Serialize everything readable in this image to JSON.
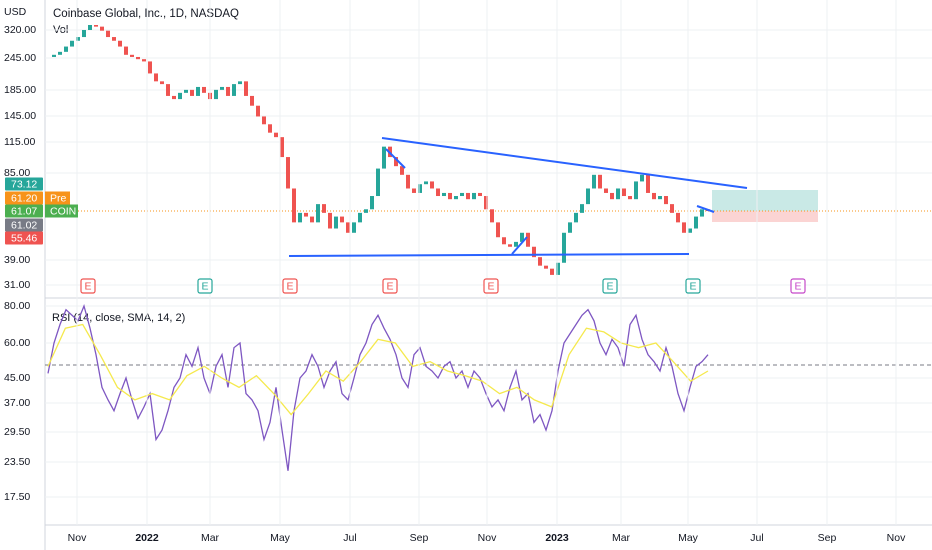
{
  "header": {
    "currency": "USD",
    "title": "Coinbase Global, Inc., 1D, NASDAQ",
    "volume": "Vol"
  },
  "price_axis": [
    "320.00",
    "245.00",
    "185.00",
    "145.00",
    "115.00",
    "85.00",
    "39.00",
    "31.00"
  ],
  "badges": [
    {
      "label": "73.12",
      "color": "#26a69a"
    },
    {
      "label": "61.20",
      "color": "#f7931a"
    },
    {
      "label": "61.07",
      "color": "#4caf50"
    },
    {
      "label": "61.02",
      "color": "#787b86"
    },
    {
      "label": "55.46",
      "color": "#ef5350"
    }
  ],
  "tags": {
    "pre": "Pre",
    "symbol": "COIN"
  },
  "price": {
    "closes": [
      250,
      255,
      262,
      275,
      290,
      300,
      320,
      335,
      330,
      318,
      300,
      290,
      275,
      255,
      250,
      245,
      240,
      215,
      200,
      195,
      175,
      170,
      180,
      185,
      175,
      190,
      180,
      170,
      185,
      190,
      175,
      195,
      200,
      175,
      160,
      145,
      135,
      125,
      120,
      100,
      75,
      55,
      60,
      58,
      55,
      65,
      60,
      52,
      58,
      55,
      50,
      55,
      60,
      62,
      70,
      90,
      110,
      100,
      92,
      85,
      75,
      72,
      78,
      80,
      75,
      70,
      72,
      68,
      70,
      72,
      68,
      72,
      70,
      62,
      55,
      48,
      45,
      44,
      46,
      50,
      44,
      40,
      37,
      36,
      34,
      38,
      50,
      55,
      60,
      65,
      75,
      85,
      75,
      72,
      68,
      75,
      70,
      68,
      80,
      85,
      72,
      68,
      70,
      65,
      60,
      55,
      50,
      52,
      58,
      62,
      61
    ]
  },
  "indicator": {
    "title": "RSI (14, close, SMA, 14, 2)",
    "axis": [
      "80.00",
      "60.00",
      "45.00",
      "37.00",
      "29.50",
      "23.50",
      "17.50"
    ],
    "values": [
      47,
      60,
      70,
      78,
      75,
      72,
      80,
      68,
      55,
      42,
      38,
      35,
      40,
      45,
      38,
      33,
      36,
      40,
      28,
      30,
      35,
      42,
      45,
      55,
      50,
      58,
      45,
      40,
      50,
      55,
      42,
      58,
      60,
      40,
      38,
      35,
      28,
      32,
      42,
      30,
      22,
      35,
      45,
      48,
      55,
      50,
      42,
      48,
      52,
      40,
      38,
      45,
      55,
      60,
      70,
      75,
      68,
      62,
      55,
      45,
      42,
      55,
      58,
      50,
      48,
      45,
      50,
      52,
      45,
      48,
      42,
      48,
      45,
      40,
      36,
      38,
      35,
      42,
      48,
      38,
      40,
      32,
      34,
      30,
      35,
      48,
      60,
      65,
      70,
      75,
      78,
      72,
      60,
      55,
      62,
      58,
      50,
      70,
      75,
      62,
      55,
      52,
      48,
      58,
      50,
      40,
      35,
      42,
      50,
      52,
      55
    ],
    "average": [
      50,
      68,
      70,
      55,
      42,
      38,
      40,
      38,
      46,
      50,
      45,
      42,
      46,
      40,
      34,
      40,
      48,
      44,
      52,
      62,
      60,
      50,
      52,
      48,
      46,
      44,
      40,
      42,
      38,
      36,
      55,
      68,
      66,
      60,
      58,
      60,
      52,
      44,
      48
    ]
  },
  "time_axis": [
    {
      "label": "Nov",
      "bold": false
    },
    {
      "label": "2022",
      "bold": true
    },
    {
      "label": "Mar",
      "bold": false
    },
    {
      "label": "May",
      "bold": false
    },
    {
      "label": "Jul",
      "bold": false
    },
    {
      "label": "Sep",
      "bold": false
    },
    {
      "label": "Nov",
      "bold": false
    },
    {
      "label": "2023",
      "bold": true
    },
    {
      "label": "Mar",
      "bold": false
    },
    {
      "label": "May",
      "bold": false
    },
    {
      "label": "Jul",
      "bold": false
    },
    {
      "label": "Sep",
      "bold": false
    },
    {
      "label": "Nov",
      "bold": false
    }
  ],
  "earnings": [
    {
      "label": "E",
      "color": "#ef5350"
    },
    {
      "label": "E",
      "color": "#26a69a"
    },
    {
      "label": "E",
      "color": "#ef5350"
    },
    {
      "label": "E",
      "color": "#ef5350"
    },
    {
      "label": "E",
      "color": "#ef5350"
    },
    {
      "label": "E",
      "color": "#26a69a"
    },
    {
      "label": "E",
      "color": "#26a69a"
    },
    {
      "label": "E",
      "color": "#c549c9"
    }
  ]
}
